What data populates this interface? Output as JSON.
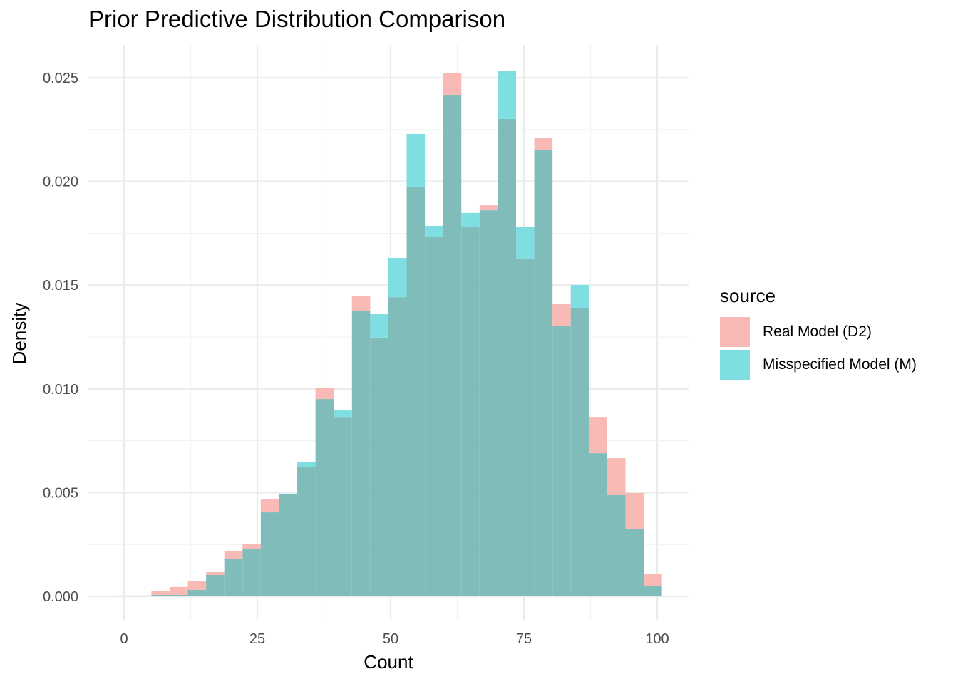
{
  "chart_data": {
    "type": "histogram",
    "title": "Prior Predictive Distribution Comparison",
    "xlabel": "Count",
    "ylabel": "Density",
    "xlim": [
      -7,
      105
    ],
    "ylim": [
      0,
      0.0265
    ],
    "xticks": [
      "0",
      "25",
      "50",
      "75",
      "100"
    ],
    "xtick_values": [
      0,
      25,
      50,
      75,
      100
    ],
    "yticks": [
      "0.000",
      "0.005",
      "0.010",
      "0.015",
      "0.020",
      "0.025"
    ],
    "ytick_values": [
      0,
      0.005,
      0.01,
      0.015,
      0.02,
      0.025
    ],
    "grid": true,
    "binwidth": 3.42,
    "bin_centers": [
      0,
      3.42,
      6.84,
      10.26,
      13.68,
      17.1,
      20.52,
      23.94,
      27.36,
      30.78,
      34.2,
      37.62,
      41.04,
      44.46,
      47.88,
      51.3,
      54.72,
      58.14,
      61.56,
      64.98,
      68.4,
      71.82,
      75.24,
      78.66,
      82.08,
      85.5,
      88.92,
      92.34,
      95.76,
      99.18
    ],
    "legend_title": "source",
    "legend_position": "right",
    "series": [
      {
        "name": "Real Model (D2)",
        "color": "#F8766D",
        "values": [
          4e-05,
          4e-05,
          0.00024,
          0.00045,
          0.00072,
          0.00117,
          0.0022,
          0.00254,
          0.0047,
          0.00491,
          0.00622,
          0.01006,
          0.00865,
          0.01446,
          0.01247,
          0.01442,
          0.01975,
          0.01734,
          0.02521,
          0.01779,
          0.01885,
          0.02301,
          0.01628,
          0.02208,
          0.01408,
          0.01391,
          0.00865,
          0.00666,
          0.00498,
          0.0011
        ]
      },
      {
        "name": "Misspecified Model (M)",
        "color": "#00BFC4",
        "values": [
          0,
          0,
          7e-05,
          7e-05,
          0.00031,
          0.00103,
          0.00182,
          0.00227,
          0.00405,
          0.00495,
          0.00646,
          0.00951,
          0.00896,
          0.01377,
          0.01363,
          0.01631,
          0.02229,
          0.01786,
          0.02414,
          0.01848,
          0.01861,
          0.02531,
          0.01782,
          0.0215,
          0.01305,
          0.01501,
          0.0069,
          0.00488,
          0.00326,
          0.00048
        ]
      }
    ]
  },
  "colors": {
    "real_excess": "#F9B9B5",
    "m_excess": "#7EDEE1",
    "overlap": "#7FBCBA"
  }
}
